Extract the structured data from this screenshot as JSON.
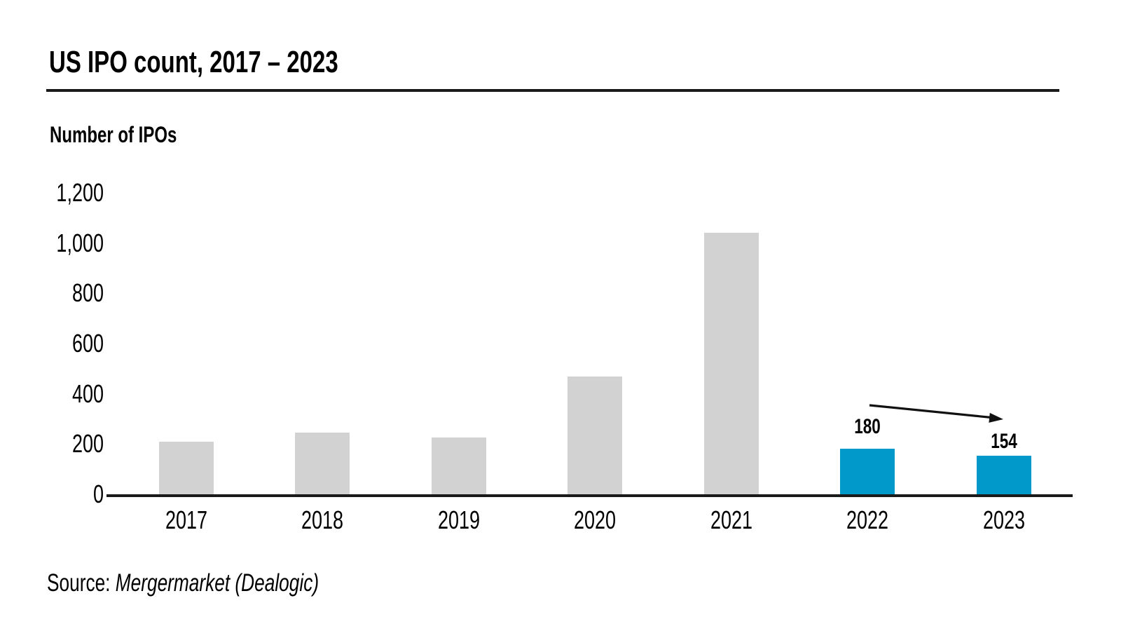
{
  "title": "US IPO count, 2017 – 2023",
  "y_axis_label": "Number of IPOs",
  "y_ticks": [
    "1,200",
    "1,000",
    "800",
    "600",
    "400",
    "200",
    "0"
  ],
  "source": {
    "prefix": "Source: ",
    "name": "Mergermarket (Dealogic)"
  },
  "colors": {
    "default_bar": "#D2D2D2",
    "highlight_bar": "#0099CA",
    "axis_line": "#1A1A1A",
    "text": "#000000"
  },
  "chart_data": {
    "type": "bar",
    "title": "US IPO count, 2017 – 2023",
    "ylabel": "Number of IPOs",
    "categories": [
      "2017",
      "2018",
      "2019",
      "2020",
      "2021",
      "2022",
      "2023"
    ],
    "values": [
      210,
      245,
      225,
      470,
      1040,
      180,
      154
    ],
    "value_labels": [
      "",
      "",
      "",
      "",
      "",
      "180",
      "154"
    ],
    "highlighted": [
      false,
      false,
      false,
      false,
      false,
      true,
      true
    ],
    "ylim": [
      0,
      1200
    ],
    "ytick_step": 200,
    "grid": false,
    "legend": "none",
    "annotation": "black arrow sloping down from above 2022 bar to above 2023 bar indicating decline",
    "note": "2017–2021 bar values estimated from y-axis scale; 180 and 154 are printed data labels",
    "source": "Source: Mergermarket (Dealogic)"
  }
}
